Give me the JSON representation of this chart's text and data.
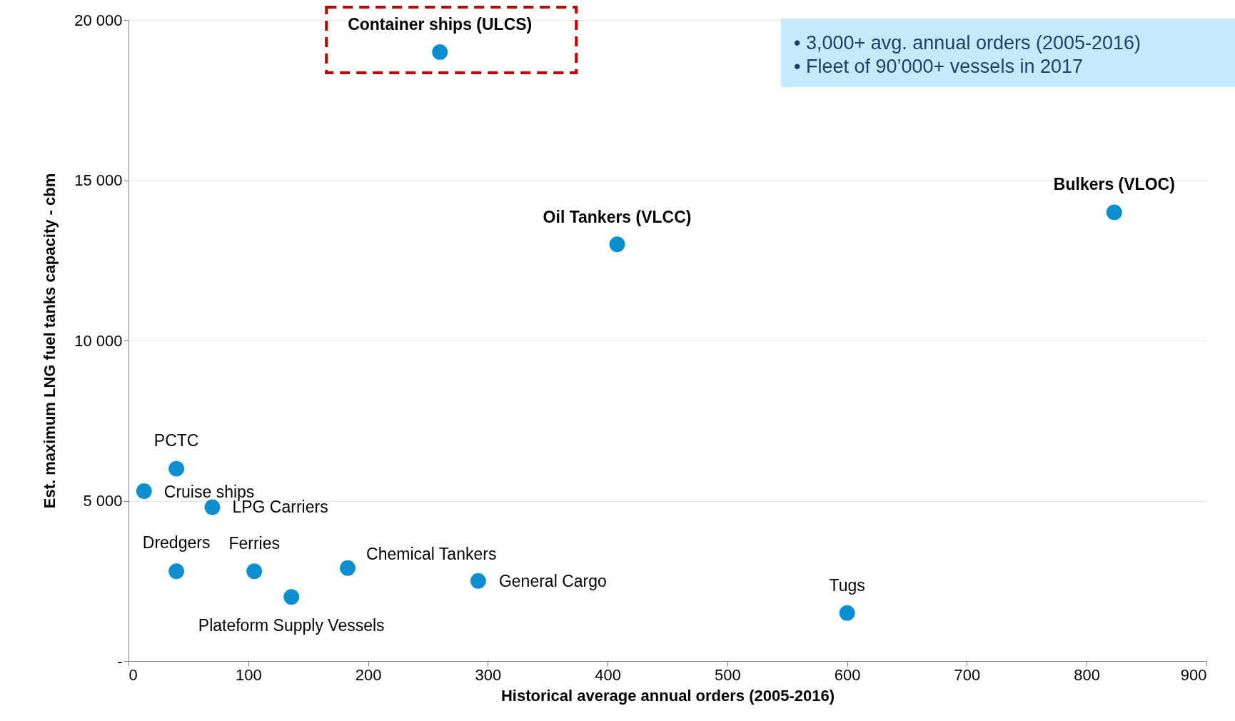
{
  "chart_data": {
    "type": "scatter",
    "xlabel": "Historical average annual orders (2005-2016)",
    "ylabel": "Est. maximum LNG fuel tanks capacity - cbm",
    "x": [
      260,
      408,
      823,
      40,
      13,
      70,
      40,
      105,
      136,
      183,
      292,
      600
    ],
    "values": [
      19000,
      13000,
      14000,
      6000,
      5300,
      4800,
      2800,
      2800,
      2000,
      2900,
      2500,
      1500
    ],
    "color": "#0b8fd0",
    "marker": "circle",
    "grid": "y",
    "xlim": [
      0,
      900
    ],
    "ylim": [
      0,
      20000
    ],
    "xticks": [
      0,
      100,
      200,
      300,
      400,
      500,
      600,
      700,
      800,
      900
    ],
    "yticks": [
      {
        "value": 0,
        "label": "-"
      },
      {
        "value": 5000,
        "label": "5 000"
      },
      {
        "value": 10000,
        "label": "10 000"
      },
      {
        "value": 15000,
        "label": "15 000"
      },
      {
        "value": 20000,
        "label": "20 000"
      }
    ],
    "annotations": [
      {
        "text": "Container ships (ULCS)",
        "x": 260,
        "y": 19000
      },
      {
        "text": "Oil Tankers (VLCC)",
        "x": 408,
        "y": 13000
      },
      {
        "text": "Bulkers (VLOC)",
        "x": 823,
        "y": 14000
      },
      {
        "text": "PCTC",
        "x": 40,
        "y": 6000
      },
      {
        "text": "Cruise ships",
        "x": 13,
        "y": 5300
      },
      {
        "text": "LPG Carriers",
        "x": 70,
        "y": 4800
      },
      {
        "text": "Dredgers",
        "x": 40,
        "y": 2800
      },
      {
        "text": "Ferries",
        "x": 105,
        "y": 2800
      },
      {
        "text": "Plateform Supply Vessels",
        "x": 136,
        "y": 2000
      },
      {
        "text": "Chemical Tankers",
        "x": 183,
        "y": 2900
      },
      {
        "text": "General Cargo",
        "x": 292,
        "y": 2500
      },
      {
        "text": "Tugs",
        "x": 600,
        "y": 1500
      },
      "•  3,000+ avg. annual orders (2005-2016)",
      "•  Fleet of 90’000+ vessels in 2017"
    ]
  }
}
